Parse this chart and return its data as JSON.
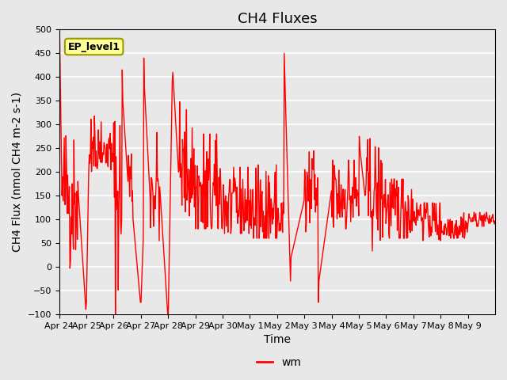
{
  "title": "CH4 Fluxes",
  "xlabel": "Time",
  "ylabel": "CH4 Flux (nmol CH4 m-2 s-1)",
  "ylim": [
    -100,
    500
  ],
  "yticks": [
    -100,
    -50,
    0,
    50,
    100,
    150,
    200,
    250,
    300,
    350,
    400,
    450,
    500
  ],
  "line_color": "red",
  "line_width": 1.0,
  "background_color": "#e8e8e8",
  "grid_color": "white",
  "legend_label": "wm",
  "annotation_text": "EP_level1",
  "annotation_bg": "#ffff99",
  "annotation_border": "#999900",
  "x_tick_labels": [
    "Apr 24",
    "Apr 25",
    "Apr 26",
    "Apr 27",
    "Apr 28",
    "Apr 29",
    "Apr 30",
    "May 1",
    "May 2",
    "May 3",
    "May 4",
    "May 5",
    "May 6",
    "May 7",
    "May 8",
    "May 9"
  ],
  "title_fontsize": 13,
  "axis_label_fontsize": 10,
  "tick_fontsize": 8
}
